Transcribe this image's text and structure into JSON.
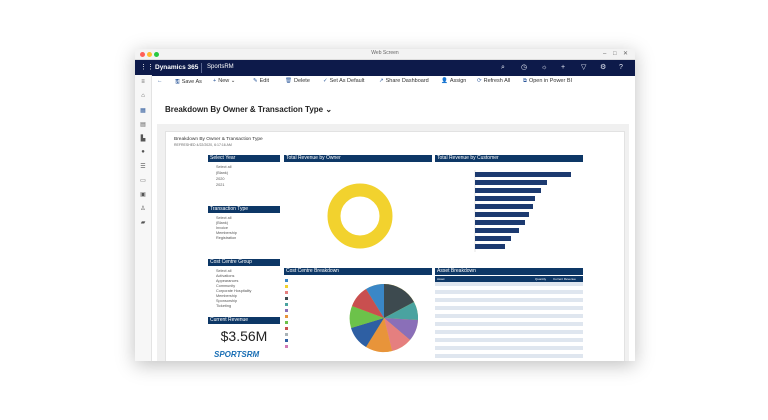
{
  "window": {
    "title": "Web Screen"
  },
  "navbar": {
    "brand": "Dynamics 365",
    "app": "SportsRM"
  },
  "commands": [
    {
      "icon": "back-arrow-icon",
      "glyph": "←",
      "label": ""
    },
    {
      "icon": "save-as-icon",
      "glyph": "🖫",
      "label": "Save As"
    },
    {
      "icon": "new-icon",
      "glyph": "+",
      "label": "New"
    },
    {
      "icon": "edit-icon",
      "glyph": "✎",
      "label": "Edit"
    },
    {
      "icon": "delete-icon",
      "glyph": "🗑",
      "label": "Delete"
    },
    {
      "icon": "check-icon",
      "glyph": "✓",
      "label": "Set As Default"
    },
    {
      "icon": "share-icon",
      "glyph": "↗",
      "label": "Share Dashboard"
    },
    {
      "icon": "assign-icon",
      "glyph": "👤",
      "label": "Assign"
    },
    {
      "icon": "refresh-icon",
      "glyph": "⟳",
      "label": "Refresh All"
    },
    {
      "icon": "powerbi-icon",
      "glyph": "⧉",
      "label": "Open in Power BI"
    }
  ],
  "page_title": "Breakdown By Owner & Transaction Type",
  "report": {
    "title": "Breakdown By Owner & Transaction Type",
    "refreshed": "REFRESHED 4/22/2020, 6:17:16 AM",
    "select_year": {
      "title": "Select Year",
      "items": [
        "Select all",
        "(Blank)",
        "2020",
        "2021"
      ]
    },
    "transaction_type": {
      "title": "Transaction Type",
      "items": [
        "Select all",
        "(Blank)",
        "Invoice",
        "Membership",
        "Registration"
      ]
    },
    "cost_centre_group": {
      "title": "Cost Centre Group",
      "items": [
        "Select all",
        "Activations",
        "Appearances",
        "Community",
        "Corporate Hospitality",
        "Membership",
        "Sponsorship",
        "Ticketing"
      ]
    },
    "current_revenue": {
      "title": "Current Revenue",
      "value": "$3.56M"
    },
    "logo_text": "SPORTSRM",
    "total_by_owner": {
      "title": "Total Revenue by Owner"
    },
    "total_by_customer": {
      "title": "Total Revenue by Customer"
    },
    "cost_centre_breakdown": {
      "title": "Cost Centre Breakdown"
    },
    "asset_breakdown": {
      "title": "Asset Breakdown",
      "columns": [
        "Asset",
        "Quantity",
        "Current Revenue"
      ]
    }
  }
}
